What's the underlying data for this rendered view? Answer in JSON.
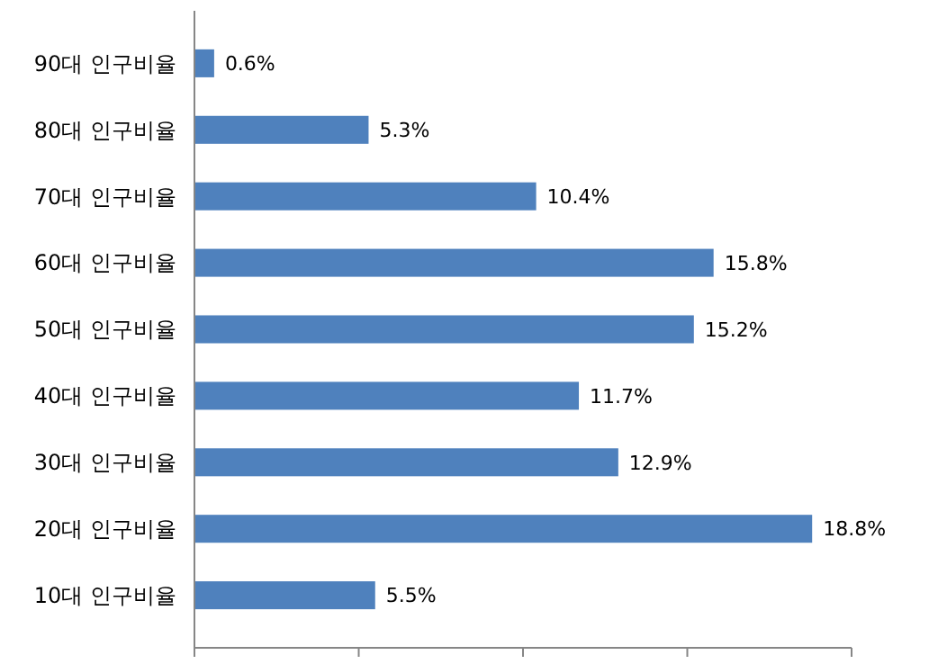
{
  "chart_data": {
    "type": "bar",
    "orientation": "horizontal",
    "categories": [
      "90대 인구비율",
      "80대 인구비율",
      "70대 인구비율",
      "60대 인구비율",
      "50대 인구비율",
      "40대 인구비율",
      "30대 인구비율",
      "20대 인구비율",
      "10대 인구비율"
    ],
    "values": [
      0.6,
      5.3,
      10.4,
      15.8,
      15.2,
      11.7,
      12.9,
      18.8,
      5.5
    ],
    "value_labels": [
      "0.6%",
      "5.3%",
      "10.4%",
      "15.8%",
      "15.2%",
      "11.7%",
      "12.9%",
      "18.8%",
      "5.5%"
    ],
    "color": "#4f81bd",
    "xlim": [
      0,
      20
    ],
    "xticks": [
      {
        "value": 0,
        "label": null
      },
      {
        "value": 5,
        "label": null
      },
      {
        "value": 10,
        "label": null
      },
      {
        "value": 15,
        "label": null
      },
      {
        "value": 20,
        "label": null
      }
    ],
    "tick_labels": "y",
    "grid": false
  }
}
